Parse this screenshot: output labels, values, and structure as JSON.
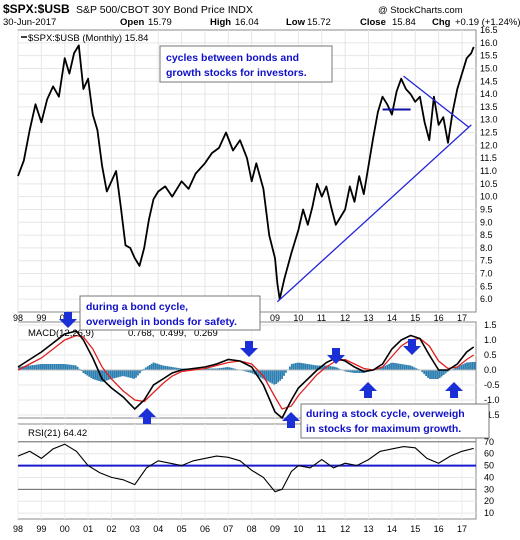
{
  "header": {
    "ticker": "$SPX:$USB",
    "name": "S&P 500/CBOT 30Y Bond Price INDX",
    "date": "30-Jun-2017",
    "ohlc_labels": {
      "open": "Open",
      "high": "High",
      "low": "Low",
      "close": "Close",
      "chg": "Chg"
    },
    "open": "15.79",
    "high": "16.04",
    "low": "15.72",
    "close": "15.84",
    "chg": "+0.19 (+1.24%)",
    "watermark": "@ StockCharts.com"
  },
  "colors": {
    "price": "#000000",
    "trendline": "#2424d8",
    "macd": "#000000",
    "signal": "#e02020",
    "histogram": "#2c7fb0",
    "arrow": "#1a2fd6",
    "callout_text": "#1010c8",
    "rsi_level": "#1a1ad0"
  },
  "legends": {
    "price": "$SPX:$USB (Monthly) 15.84",
    "macd_prefix": "MACD(12,26,9)",
    "macd_value": "0.768,",
    "signal_value": "0.499,",
    "hist_value": "0.269",
    "rsi": "RSI(21) 64.42"
  },
  "annotations": {
    "cycles": [
      "cycles between bonds and",
      "growth stocks for investors."
    ],
    "bond_cycle": [
      "during a bond cycle,",
      "overweigh in bonds for safety."
    ],
    "stock_cycle": [
      "during a stock cycle, overweigh",
      "in stocks for maximum growth."
    ]
  },
  "chart_data": [
    {
      "type": "line",
      "title": "$SPX:$USB (Monthly) 15.84",
      "x_tick_labels": [
        "98",
        "99",
        "00",
        "01",
        "02",
        "03",
        "04",
        "05",
        "06",
        "07",
        "08",
        "09",
        "10",
        "11",
        "12",
        "13",
        "14",
        "15",
        "16",
        "17"
      ],
      "ylim": [
        5.5,
        16.5
      ],
      "y_tick_labels": [
        "6.0",
        "6.5",
        "7.0",
        "7.5",
        "8.0",
        "8.5",
        "9.0",
        "9.5",
        "10.0",
        "10.5",
        "11.0",
        "11.5",
        "12.0",
        "12.5",
        "13.0",
        "13.5",
        "14.0",
        "14.5",
        "15.0",
        "15.5",
        "16.0",
        "16.5"
      ],
      "series": [
        {
          "x": [
            1998.0,
            1998.25,
            1998.5,
            1998.75,
            1999.0,
            1999.25,
            1999.5,
            1999.75,
            2000.0,
            2000.2,
            2000.4,
            2000.6,
            2000.8,
            2001.0,
            2001.2,
            2001.4,
            2001.6,
            2001.8,
            2002.0,
            2002.2,
            2002.4,
            2002.6,
            2002.8,
            2003.0,
            2003.2,
            2003.4,
            2003.6,
            2003.8,
            2004.0,
            2004.3,
            2004.6,
            2005.0,
            2005.3,
            2005.6,
            2006.0,
            2006.3,
            2006.6,
            2006.9,
            2007.2,
            2007.5,
            2007.8,
            2008.0,
            2008.2,
            2008.5,
            2008.75,
            2009.0,
            2009.1,
            2009.2,
            2009.4,
            2009.7,
            2010.0,
            2010.2,
            2010.4,
            2010.6,
            2010.8,
            2011.0,
            2011.2,
            2011.4,
            2011.6,
            2011.8,
            2012.0,
            2012.2,
            2012.4,
            2012.6,
            2012.8,
            2013.0,
            2013.2,
            2013.4,
            2013.6,
            2013.8,
            2014.0,
            2014.2,
            2014.4,
            2014.6,
            2014.8,
            2015.0,
            2015.2,
            2015.4,
            2015.6,
            2015.8,
            2016.0,
            2016.2,
            2016.4,
            2016.6,
            2016.8,
            2017.0,
            2017.2,
            2017.4,
            2017.5
          ],
          "y": [
            10.8,
            11.4,
            12.6,
            13.6,
            12.9,
            13.8,
            14.3,
            13.9,
            15.4,
            14.8,
            15.6,
            15.9,
            14.2,
            14.6,
            13.2,
            12.6,
            11.2,
            10.2,
            10.6,
            11.0,
            9.6,
            8.1,
            8.0,
            7.6,
            7.3,
            8.0,
            9.1,
            9.9,
            10.2,
            10.4,
            10.0,
            10.6,
            10.3,
            10.9,
            11.3,
            11.7,
            11.9,
            12.5,
            11.8,
            12.2,
            11.5,
            10.6,
            11.3,
            10.3,
            8.5,
            7.6,
            6.6,
            6.0,
            6.8,
            7.8,
            8.7,
            9.5,
            8.9,
            9.6,
            10.5,
            10.0,
            10.4,
            9.6,
            8.9,
            9.2,
            9.5,
            10.4,
            9.8,
            10.8,
            10.1,
            11.2,
            12.3,
            13.3,
            13.9,
            13.6,
            13.2,
            14.1,
            14.6,
            14.2,
            14.0,
            13.7,
            13.9,
            12.9,
            12.2,
            13.9,
            12.8,
            13.1,
            12.1,
            13.3,
            14.2,
            14.8,
            15.4,
            15.6,
            15.84
          ]
        }
      ],
      "trendlines": [
        {
          "from": [
            2009.1,
            5.9
          ],
          "to": [
            2017.4,
            12.8
          ]
        },
        {
          "from": [
            2014.5,
            14.7
          ],
          "to": [
            2017.3,
            12.7
          ]
        },
        {
          "from": [
            2013.6,
            13.4
          ],
          "to": [
            2014.8,
            13.4
          ]
        }
      ]
    },
    {
      "type": "line",
      "title": "MACD(12,26,9) 0.768, 0.499, 0.269",
      "ylim": [
        -1.6,
        1.6
      ],
      "y_tick_labels": [
        "1.5",
        "1.0",
        "0.5",
        "0.0",
        "-0.5",
        "-1.0",
        "-1.5"
      ],
      "series": [
        {
          "name": "MACD",
          "x": [
            1998.0,
            1998.5,
            1999.0,
            1999.5,
            2000.0,
            2000.5,
            2000.8,
            2001.2,
            2001.6,
            2002.0,
            2002.5,
            2003.0,
            2003.4,
            2003.8,
            2004.2,
            2004.6,
            2005.0,
            2005.5,
            2006.0,
            2006.5,
            2007.0,
            2007.5,
            2008.0,
            2008.5,
            2009.0,
            2009.3,
            2009.7,
            2010.0,
            2010.4,
            2010.8,
            2011.2,
            2011.6,
            2012.0,
            2012.4,
            2012.8,
            2013.2,
            2013.6,
            2014.0,
            2014.4,
            2014.8,
            2015.2,
            2015.6,
            2016.0,
            2016.4,
            2016.8,
            2017.2,
            2017.5
          ],
          "y": [
            0.1,
            0.35,
            0.6,
            0.9,
            1.2,
            1.3,
            1.0,
            0.4,
            -0.3,
            -0.6,
            -0.9,
            -1.3,
            -1.0,
            -0.5,
            -0.3,
            -0.1,
            0.0,
            0.05,
            0.1,
            0.2,
            0.35,
            0.3,
            0.1,
            -0.5,
            -1.4,
            -1.6,
            -1.0,
            -0.6,
            -0.3,
            0.0,
            0.25,
            0.4,
            0.3,
            0.1,
            -0.05,
            0.0,
            0.2,
            0.7,
            1.0,
            1.15,
            1.05,
            0.5,
            0.0,
            0.0,
            0.2,
            0.6,
            0.768
          ]
        },
        {
          "name": "Signal",
          "x": [
            1998.0,
            1998.5,
            1999.0,
            1999.5,
            2000.0,
            2000.5,
            2000.8,
            2001.2,
            2001.6,
            2002.0,
            2002.5,
            2003.0,
            2003.4,
            2003.8,
            2004.2,
            2004.6,
            2005.0,
            2005.5,
            2006.0,
            2006.5,
            2007.0,
            2007.5,
            2008.0,
            2008.5,
            2009.0,
            2009.3,
            2009.7,
            2010.0,
            2010.4,
            2010.8,
            2011.2,
            2011.6,
            2012.0,
            2012.4,
            2012.8,
            2013.2,
            2013.6,
            2014.0,
            2014.4,
            2014.8,
            2015.2,
            2015.6,
            2016.0,
            2016.4,
            2016.8,
            2017.2,
            2017.5
          ],
          "y": [
            0.0,
            0.2,
            0.4,
            0.7,
            1.0,
            1.15,
            1.1,
            0.7,
            0.1,
            -0.3,
            -0.7,
            -1.0,
            -1.05,
            -0.75,
            -0.45,
            -0.2,
            -0.05,
            0.0,
            0.05,
            0.15,
            0.25,
            0.3,
            0.2,
            -0.2,
            -0.9,
            -1.3,
            -1.2,
            -0.85,
            -0.5,
            -0.15,
            0.1,
            0.3,
            0.35,
            0.2,
            0.05,
            0.0,
            0.1,
            0.45,
            0.8,
            1.0,
            1.05,
            0.8,
            0.3,
            0.05,
            0.1,
            0.35,
            0.499
          ]
        }
      ]
    },
    {
      "type": "line",
      "title": "RSI(21) 64.42",
      "ylim": [
        5,
        85
      ],
      "y_tick_labels": [
        "70",
        "60",
        "50",
        "40",
        "30",
        "20",
        "10"
      ],
      "series": [
        {
          "name": "RSI",
          "x": [
            1998.0,
            1998.5,
            1999.0,
            1999.5,
            2000.0,
            2000.5,
            2001.0,
            2001.5,
            2002.0,
            2002.5,
            2003.0,
            2003.5,
            2004.0,
            2004.5,
            2005.0,
            2005.5,
            2006.0,
            2006.5,
            2007.0,
            2007.5,
            2008.0,
            2008.5,
            2009.0,
            2009.3,
            2009.7,
            2010.0,
            2010.5,
            2011.0,
            2011.5,
            2012.0,
            2012.5,
            2013.0,
            2013.5,
            2014.0,
            2014.5,
            2015.0,
            2015.5,
            2016.0,
            2016.5,
            2017.0,
            2017.5
          ],
          "y": [
            58,
            62,
            56,
            64,
            68,
            62,
            50,
            44,
            40,
            38,
            34,
            48,
            54,
            52,
            50,
            54,
            56,
            58,
            57,
            54,
            46,
            40,
            28,
            30,
            45,
            50,
            48,
            55,
            48,
            52,
            50,
            55,
            62,
            64,
            66,
            65,
            56,
            52,
            58,
            62,
            64.42
          ]
        }
      ],
      "reference_lines": [
        70,
        50,
        30
      ]
    }
  ]
}
